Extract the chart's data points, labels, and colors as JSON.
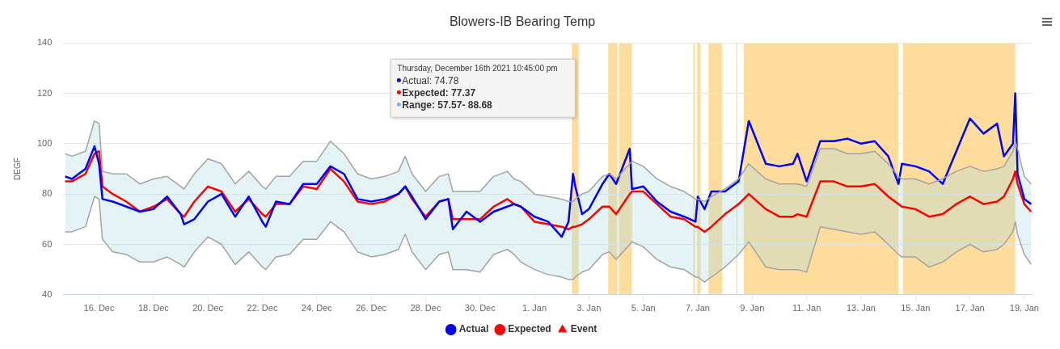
{
  "chart_data": {
    "type": "line",
    "title": "Blowers-IB Bearing Temp",
    "ylabel": "DEGF",
    "x": [
      "2021-12-14T18:00",
      "2021-12-15T00:00",
      "2021-12-15T12:00",
      "2021-12-15T20:00",
      "2021-12-16T00:00",
      "2021-12-16T03:00",
      "2021-12-16T12:00",
      "2021-12-17T00:00",
      "2021-12-17T12:00",
      "2021-12-18T00:00",
      "2021-12-18T12:00",
      "2021-12-19T00:00",
      "2021-12-19T03:00",
      "2021-12-19T12:00",
      "2021-12-20T00:00",
      "2021-12-20T12:00",
      "2021-12-21T00:00",
      "2021-12-21T12:00",
      "2021-12-22T00:00",
      "2021-12-22T03:00",
      "2021-12-22T12:00",
      "2021-12-23T00:00",
      "2021-12-23T12:00",
      "2021-12-24T00:00",
      "2021-12-24T12:00",
      "2021-12-25T00:00",
      "2021-12-25T12:00",
      "2021-12-26T00:00",
      "2021-12-26T12:00",
      "2021-12-27T00:00",
      "2021-12-27T06:00",
      "2021-12-27T12:00",
      "2021-12-28T00:00",
      "2021-12-28T12:00",
      "2021-12-28T20:00",
      "2021-12-29T00:00",
      "2021-12-29T12:00",
      "2021-12-30T00:00",
      "2021-12-30T12:00",
      "2021-12-31T00:00",
      "2021-12-31T06:00",
      "2021-12-31T12:00",
      "2022-01-01T00:00",
      "2022-01-01T12:00",
      "2022-01-02T00:00",
      "2022-01-02T06:00",
      "2022-01-02T10:00",
      "2022-01-02T12:00",
      "2022-01-02T18:00",
      "2022-01-03T00:00",
      "2022-01-03T12:00",
      "2022-01-03T18:00",
      "2022-01-04T00:00",
      "2022-01-04T12:00",
      "2022-01-04T14:00",
      "2022-01-05T00:00",
      "2022-01-05T12:00",
      "2022-01-06T00:00",
      "2022-01-06T12:00",
      "2022-01-06T22:00",
      "2022-01-07T00:00",
      "2022-01-07T06:00",
      "2022-01-07T12:00",
      "2022-01-08T00:00",
      "2022-01-08T12:00",
      "2022-01-08T21:00",
      "2022-01-09T12:00",
      "2022-01-10T00:00",
      "2022-01-10T12:00",
      "2022-01-10T16:00",
      "2022-01-11T00:00",
      "2022-01-11T12:00",
      "2022-01-12T00:00",
      "2022-01-12T12:00",
      "2022-01-13T00:00",
      "2022-01-13T12:00",
      "2022-01-14T00:00",
      "2022-01-14T09:00",
      "2022-01-14T12:00",
      "2022-01-15T00:00",
      "2022-01-15T12:00",
      "2022-01-16T00:00",
      "2022-01-16T12:00",
      "2022-01-17T00:00",
      "2022-01-17T12:00",
      "2022-01-18T00:00",
      "2022-01-18T06:00",
      "2022-01-18T14:00",
      "2022-01-18T16:00",
      "2022-01-18T18:00",
      "2022-01-19T00:00",
      "2022-01-19T06:00"
    ],
    "series": [
      {
        "name": "Actual",
        "color": "#0000ff",
        "values": [
          87,
          86,
          90,
          99,
          92,
          78,
          77,
          75,
          73,
          74,
          79,
          72,
          68,
          70,
          77,
          80,
          71,
          79,
          69,
          67,
          77,
          76,
          84,
          84,
          91,
          88,
          78,
          77,
          78,
          80,
          83,
          79,
          70,
          77,
          78,
          66,
          73,
          69,
          73,
          75,
          76,
          75,
          71,
          69,
          63,
          69,
          88,
          83,
          72,
          74,
          84,
          88,
          84,
          98,
          82,
          83,
          77,
          73,
          71,
          69,
          79,
          74,
          81,
          81,
          85,
          109,
          92,
          91,
          92,
          96,
          85,
          101,
          101,
          102,
          100,
          101,
          95,
          84,
          92,
          91,
          89,
          84,
          97,
          110,
          104,
          108,
          95,
          100,
          120,
          88,
          78,
          76
        ]
      },
      {
        "name": "Expected",
        "color": "#ff0000",
        "values": [
          85,
          85,
          88,
          96,
          97,
          83,
          80,
          77,
          73,
          75,
          78,
          72,
          71,
          77,
          83,
          81,
          73,
          78,
          72,
          71,
          76,
          76,
          83,
          82,
          90,
          85,
          77,
          76,
          77,
          80,
          83,
          78,
          71,
          77,
          78,
          70,
          70,
          70,
          75,
          78,
          76,
          75,
          69,
          68,
          67,
          66,
          67,
          67,
          68,
          70,
          75,
          75,
          72,
          80,
          81,
          81,
          76,
          71,
          70,
          67,
          67,
          65,
          67,
          72,
          76,
          80,
          74,
          71,
          71,
          72,
          71,
          85,
          85,
          83,
          83,
          84,
          79,
          76,
          75,
          74,
          71,
          72,
          76,
          79,
          76,
          77,
          79,
          86,
          89,
          84,
          76,
          73
        ],
        "lower": [
          65,
          65,
          67,
          79,
          78,
          62,
          57,
          56,
          53,
          53,
          55,
          52,
          51,
          57,
          63,
          60,
          52,
          57,
          51,
          50,
          55,
          56,
          62,
          62,
          69,
          65,
          57,
          55,
          56,
          58,
          64,
          57,
          50,
          56,
          57,
          50,
          50,
          49,
          56,
          58,
          56,
          53,
          50,
          48,
          47,
          46,
          46,
          47,
          49,
          50,
          56,
          57,
          54,
          60,
          61,
          59,
          54,
          51,
          50,
          47,
          47,
          45,
          47,
          51,
          56,
          61,
          51,
          50,
          50,
          50,
          49,
          67,
          66,
          65,
          64,
          65,
          60,
          56,
          55,
          55,
          51,
          53,
          57,
          60,
          57,
          58,
          60,
          65,
          69,
          64,
          56,
          52
        ],
        "upper": [
          96,
          95,
          97,
          109,
          108,
          89,
          88,
          88,
          84,
          86,
          87,
          83,
          82,
          88,
          94,
          92,
          84,
          89,
          83,
          82,
          87,
          87,
          93,
          93,
          101,
          96,
          88,
          86,
          87,
          89,
          95,
          88,
          81,
          87,
          88,
          81,
          81,
          81,
          87,
          89,
          86,
          85,
          80,
          79,
          78,
          77,
          77,
          78,
          80,
          81,
          87,
          88,
          86,
          92,
          93,
          91,
          86,
          83,
          81,
          78,
          78,
          77,
          79,
          82,
          86,
          92,
          86,
          84,
          84,
          84,
          83,
          98,
          98,
          96,
          96,
          97,
          92,
          87,
          86,
          86,
          84,
          86,
          89,
          91,
          89,
          90,
          91,
          97,
          101,
          98,
          87,
          84
        ]
      },
      {
        "color": "#a3a3a3",
        "values": [
          65,
          65,
          67,
          79,
          78,
          62,
          57,
          56,
          53,
          53,
          55,
          52,
          51,
          57,
          63,
          60,
          52,
          57,
          51,
          50,
          55,
          56,
          62,
          62,
          69,
          65,
          57,
          55,
          56,
          58,
          64,
          57,
          50,
          56,
          57,
          50,
          50,
          49,
          56,
          58,
          56,
          53,
          50,
          48,
          47,
          46,
          46,
          47,
          49,
          50,
          56,
          57,
          54,
          60,
          61,
          59,
          54,
          51,
          50,
          47,
          47,
          45,
          47,
          51,
          56,
          61,
          51,
          50,
          50,
          50,
          49,
          67,
          66,
          65,
          64,
          65,
          60,
          56,
          55,
          55,
          51,
          53,
          57,
          60,
          57,
          58,
          60,
          65,
          69,
          64,
          56,
          52
        ]
      },
      {
        "color": "#a3a3a3",
        "values": [
          96,
          95,
          97,
          109,
          108,
          89,
          88,
          88,
          84,
          86,
          87,
          83,
          82,
          88,
          94,
          92,
          84,
          89,
          83,
          82,
          87,
          87,
          93,
          93,
          101,
          96,
          88,
          86,
          87,
          89,
          95,
          88,
          81,
          87,
          88,
          81,
          81,
          81,
          87,
          89,
          86,
          85,
          80,
          79,
          78,
          77,
          77,
          78,
          80,
          81,
          87,
          88,
          86,
          92,
          93,
          91,
          86,
          83,
          81,
          78,
          78,
          77,
          79,
          82,
          86,
          92,
          86,
          84,
          84,
          84,
          83,
          98,
          98,
          96,
          96,
          97,
          92,
          87,
          86,
          86,
          84,
          86,
          89,
          91,
          89,
          90,
          91,
          97,
          101,
          98,
          87,
          84
        ]
      },
      {
        "name": "Event",
        "type": "scatter",
        "color": "#ff0000",
        "marker": "triangle",
        "values": [
          null,
          null,
          null,
          null,
          null,
          null,
          null,
          null,
          null,
          null,
          null,
          null,
          null,
          null,
          null,
          null,
          null,
          null,
          null,
          null,
          null,
          null,
          null,
          null,
          null,
          null,
          null,
          null,
          null,
          null,
          null,
          null,
          null,
          null,
          null,
          null,
          null,
          null,
          null,
          null,
          null,
          null,
          null,
          null,
          null,
          null,
          null,
          null,
          null,
          null,
          null,
          null,
          null,
          null,
          null,
          null,
          null,
          null,
          null,
          null,
          null,
          null,
          null,
          null,
          null,
          null,
          null,
          null,
          null,
          null,
          null,
          null,
          null,
          null,
          null,
          null,
          null,
          null,
          null,
          null,
          null,
          null,
          null,
          null,
          null,
          null,
          null,
          null,
          null,
          null,
          null,
          null
        ]
      }
    ],
    "xlim": [
      "2021-12-14T16:30",
      "2022-01-19T07:00"
    ],
    "xticks": [
      {
        "value": "2021-12-16",
        "label": "16. Dec"
      },
      {
        "value": "2021-12-18",
        "label": "18. Dec"
      },
      {
        "value": "2021-12-20",
        "label": "20. Dec"
      },
      {
        "value": "2021-12-22",
        "label": "22. Dec"
      },
      {
        "value": "2021-12-24",
        "label": "24. Dec"
      },
      {
        "value": "2021-12-26",
        "label": "26. Dec"
      },
      {
        "value": "2021-12-28",
        "label": "28. Dec"
      },
      {
        "value": "2021-12-30",
        "label": "30. Dec"
      },
      {
        "value": "2022-01-01",
        "label": "1. Jan"
      },
      {
        "value": "2022-01-03",
        "label": "3. Jan"
      },
      {
        "value": "2022-01-05",
        "label": "5. Jan"
      },
      {
        "value": "2022-01-07",
        "label": "7. Jan"
      },
      {
        "value": "2022-01-09",
        "label": "9. Jan"
      },
      {
        "value": "2022-01-11",
        "label": "11. Jan"
      },
      {
        "value": "2022-01-13",
        "label": "13. Jan"
      },
      {
        "value": "2022-01-15",
        "label": "15. Jan"
      },
      {
        "value": "2022-01-17",
        "label": "17. Jan"
      },
      {
        "value": "2022-01-19",
        "label": "19. Jan"
      }
    ],
    "ylim": [
      40,
      140
    ],
    "yticks": [
      40,
      60,
      80,
      100,
      120,
      140
    ],
    "grid": "y",
    "legend": "bottom",
    "bands": [
      {
        "axis": "x",
        "from": "2022-01-02T09:00",
        "to": "2022-01-02T15:00",
        "color": "#fddc9c"
      },
      {
        "axis": "x",
        "from": "2022-01-03T17:00",
        "to": "2022-01-04T01:00",
        "color": "#fddc9c"
      },
      {
        "axis": "x",
        "from": "2022-01-04T02:30",
        "to": "2022-01-04T14:00",
        "color": "#fddc9c"
      },
      {
        "axis": "x",
        "from": "2022-01-06T20:00",
        "to": "2022-01-06T21:30",
        "color": "#fddc9c"
      },
      {
        "axis": "x",
        "from": "2022-01-06T23:30",
        "to": "2022-01-07T02:30",
        "color": "#fddc9c"
      },
      {
        "axis": "x",
        "from": "2022-01-07T09:30",
        "to": "2022-01-07T21:30",
        "color": "#fddc9c"
      },
      {
        "axis": "x",
        "from": "2022-01-08T10:00",
        "to": "2022-01-08T11:00",
        "color": "#fddc9c"
      },
      {
        "axis": "x",
        "from": "2022-01-08T16:30",
        "to": "2022-01-14T09:00",
        "color": "#fddc9c"
      },
      {
        "axis": "x",
        "from": "2022-01-14T12:45",
        "to": "2022-01-18T16:00",
        "color": "#fddc9c"
      }
    ],
    "annotations": [
      "Thursday, December 16th 2021 10:45:00 pm",
      "Actual: 74.78",
      "Expected: 77.37",
      "Range: 57.57- 88.68"
    ]
  }
}
